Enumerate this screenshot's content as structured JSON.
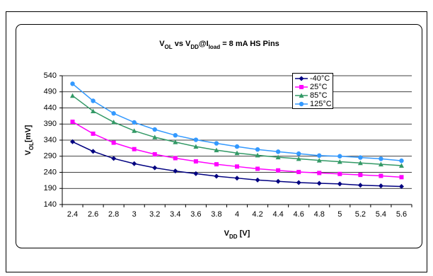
{
  "chart_data": {
    "type": "line",
    "title": [
      {
        "text": "V"
      },
      {
        "text": "OL",
        "sub": true
      },
      {
        "text": " vs V"
      },
      {
        "text": "DD",
        "sub": true
      },
      {
        "text": "@I"
      },
      {
        "text": "load",
        "sub": true
      },
      {
        "text": " = 8 mA HS Pins"
      }
    ],
    "ylabel": [
      {
        "text": "V"
      },
      {
        "text": "OL",
        "sub": true
      },
      {
        "text": "[mV]"
      }
    ],
    "xlabel": [
      {
        "text": "V"
      },
      {
        "text": "DD",
        "sub": true
      },
      {
        "text": " [V]"
      }
    ],
    "categories": [
      "2.4",
      "2.6",
      "2.8",
      "3",
      "3.2",
      "3.4",
      "3.6",
      "3.8",
      "4",
      "4.2",
      "4.4",
      "4.6",
      "4.8",
      "5",
      "5.2",
      "5.4",
      "5.6"
    ],
    "series": [
      {
        "name": "-40°C",
        "color": "#000080",
        "marker": "diamond",
        "values": [
          335,
          305,
          283,
          267,
          254,
          244,
          236,
          228,
          222,
          216,
          212,
          208,
          206,
          204,
          200,
          198,
          196
        ]
      },
      {
        "name": "25°C",
        "color": "#ff00ff",
        "marker": "square",
        "values": [
          397,
          360,
          332,
          312,
          296,
          284,
          274,
          265,
          258,
          251,
          246,
          241,
          238,
          235,
          232,
          229,
          225
        ]
      },
      {
        "name": "85°C",
        "color": "#339966",
        "marker": "triangle",
        "values": [
          478,
          430,
          396,
          369,
          349,
          334,
          320,
          309,
          300,
          293,
          287,
          282,
          277,
          273,
          269,
          265,
          261
        ]
      },
      {
        "name": "125°C",
        "color": "#3399ff",
        "marker": "circle",
        "values": [
          515,
          462,
          423,
          395,
          373,
          355,
          341,
          330,
          320,
          311,
          304,
          298,
          292,
          290,
          286,
          282,
          276
        ]
      }
    ],
    "ylim": [
      140,
      540
    ],
    "yticks": [
      140,
      190,
      240,
      290,
      340,
      390,
      440,
      490,
      540
    ],
    "grid": true,
    "legend": "upper right"
  }
}
